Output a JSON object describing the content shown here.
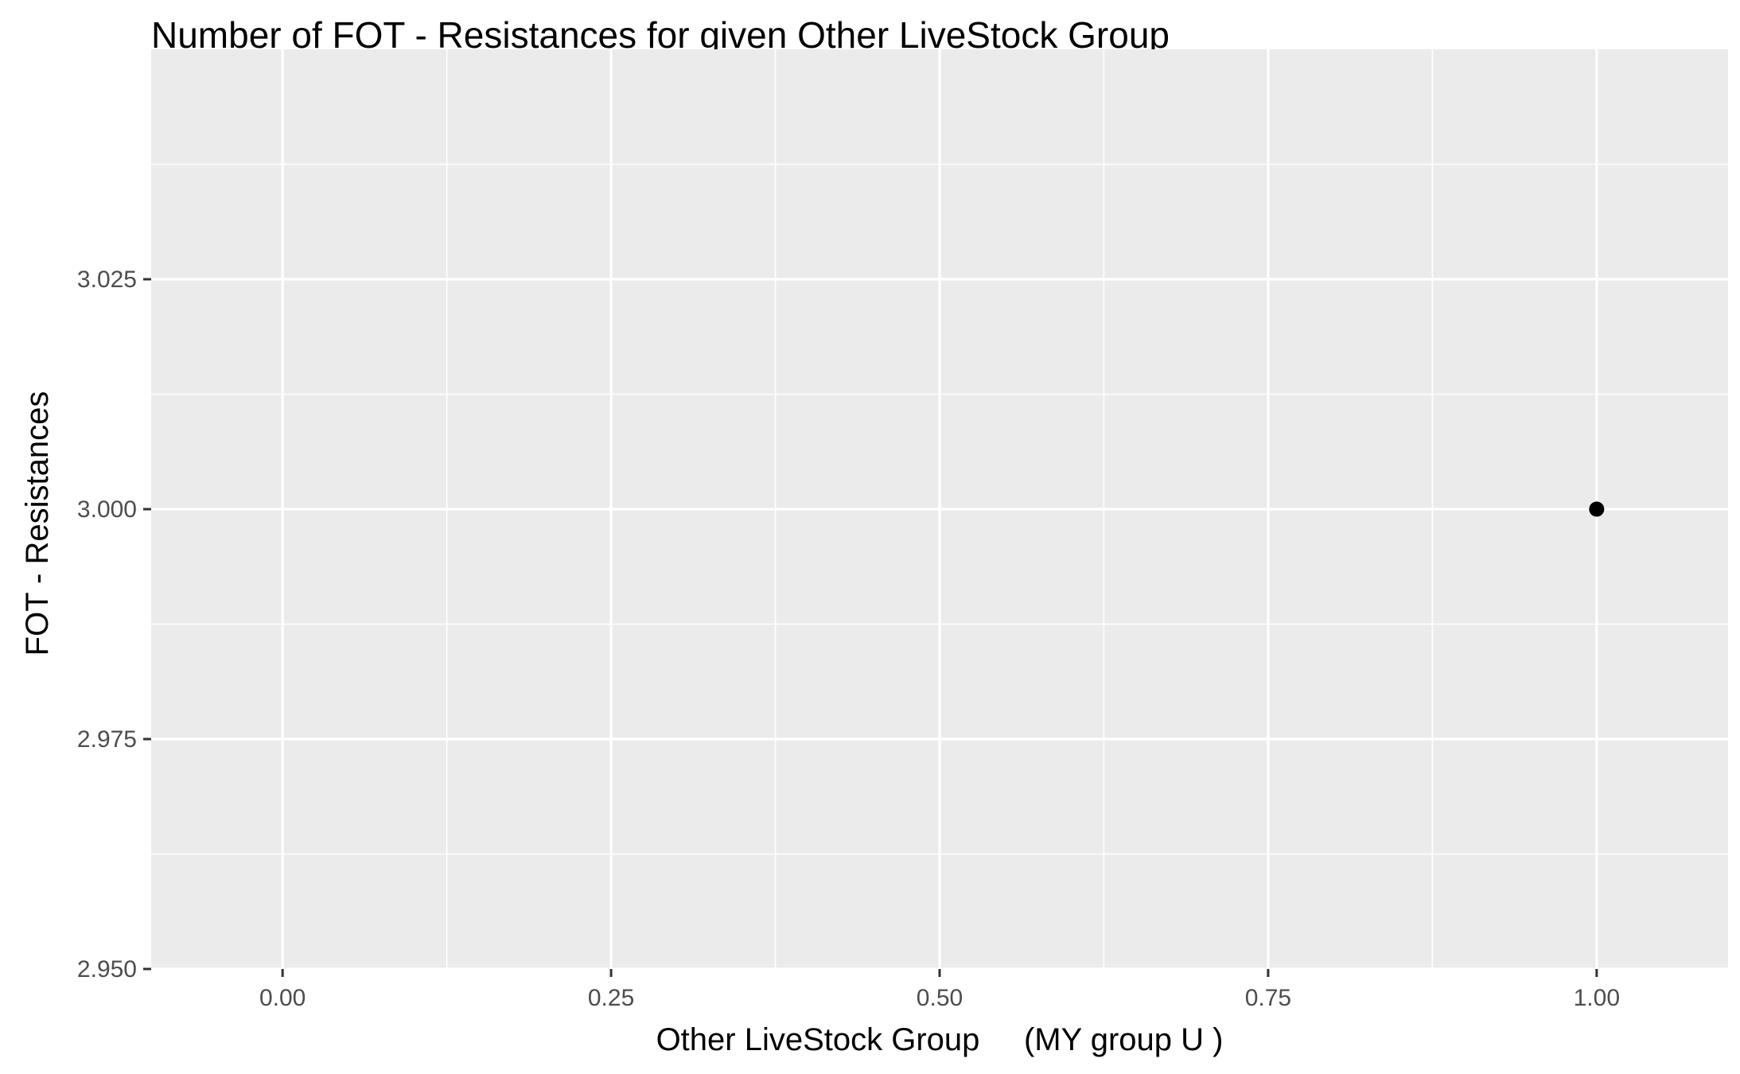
{
  "chart_data": {
    "type": "scatter",
    "title": "Number of FOT - Resistances for given Other LiveStock Group",
    "xlabel": "Other LiveStock Group     (MY group U )",
    "ylabel": "FOT - Resistances",
    "xlim": [
      -0.1,
      1.1
    ],
    "ylim": [
      2.95,
      3.05
    ],
    "x_ticks": [
      0,
      0.25,
      0.5,
      0.75,
      1
    ],
    "x_tick_labels": [
      "0.00",
      "0.25",
      "0.50",
      "0.75",
      "1.00"
    ],
    "y_ticks": [
      2.95,
      2.975,
      3,
      3.025
    ],
    "y_tick_labels": [
      "2.950",
      "2.975",
      "3.000",
      "3.025"
    ],
    "grid": true,
    "points": [
      {
        "x": 1,
        "y": 3
      }
    ],
    "colors": {
      "panel": "#ebebeb",
      "grid": "#ffffff",
      "point": "#000000"
    }
  }
}
